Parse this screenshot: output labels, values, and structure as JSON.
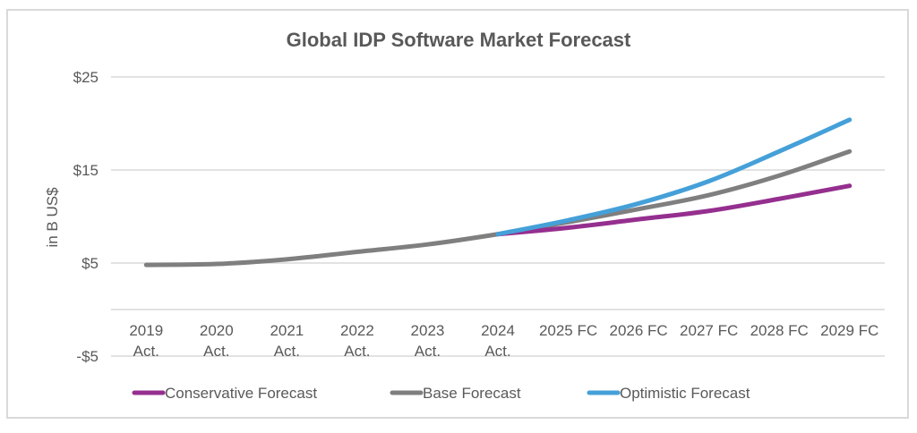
{
  "chart_data": {
    "type": "line",
    "title": "Global IDP Software Market Forecast",
    "xlabel": "",
    "ylabel": "in B US$",
    "ylim": [
      -5,
      25
    ],
    "yticks": [
      {
        "value": 25,
        "label": "$25"
      },
      {
        "value": 15,
        "label": "$15"
      },
      {
        "value": 5,
        "label": "$5"
      },
      {
        "value": -5,
        "label": "-$5"
      }
    ],
    "grid": true,
    "legend_position": "bottom",
    "categories": [
      {
        "line1": "2019",
        "line2": "Act."
      },
      {
        "line1": "2020",
        "line2": "Act."
      },
      {
        "line1": "2021",
        "line2": "Act."
      },
      {
        "line1": "2022",
        "line2": "Act."
      },
      {
        "line1": "2023",
        "line2": "Act."
      },
      {
        "line1": "2024",
        "line2": "Act."
      },
      {
        "line1": "2025 FC",
        "line2": ""
      },
      {
        "line1": "2026 FC",
        "line2": ""
      },
      {
        "line1": "2027 FC",
        "line2": ""
      },
      {
        "line1": "2028 FC",
        "line2": ""
      },
      {
        "line1": "2029 FC",
        "line2": ""
      }
    ],
    "series": [
      {
        "name": "Base Forecast",
        "color": "#7f7f7f",
        "values": [
          4.8,
          4.9,
          5.4,
          6.2,
          7.0,
          8.1,
          9.4,
          10.8,
          12.3,
          14.4,
          17.0
        ]
      },
      {
        "name": "Conservative Forecast",
        "color": "#952f8f",
        "values": [
          null,
          null,
          null,
          null,
          null,
          8.1,
          8.8,
          9.7,
          10.6,
          11.9,
          13.3
        ]
      },
      {
        "name": "Optimistic Forecast",
        "color": "#45a0d8",
        "values": [
          null,
          null,
          null,
          null,
          null,
          8.1,
          9.6,
          11.4,
          13.8,
          17.0,
          20.4
        ]
      }
    ],
    "legend": [
      {
        "name": "Conservative Forecast",
        "color": "#952f8f"
      },
      {
        "name": "Base Forecast",
        "color": "#7f7f7f"
      },
      {
        "name": "Optimistic Forecast",
        "color": "#45a0d8"
      }
    ],
    "colors": {
      "gridline": "#d9d9d9",
      "text": "#595959",
      "border": "#d9d9d9"
    }
  }
}
